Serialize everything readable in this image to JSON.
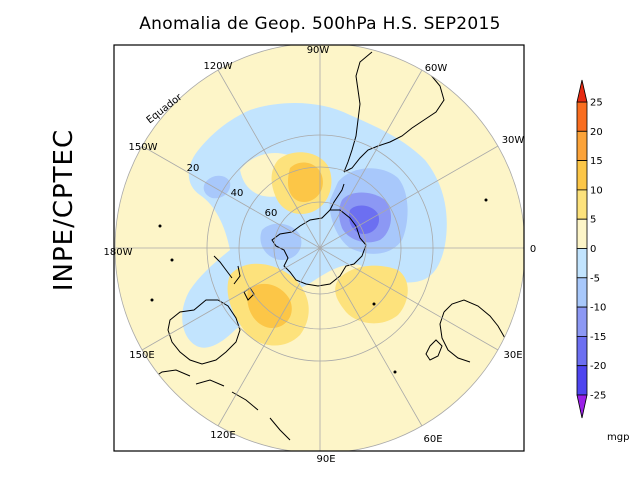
{
  "title": "Anomalia de Geop. 500hPa H.S. SEP2015",
  "side_label": "INPE/CPTEC",
  "map": {
    "projection": "polar stereographic, south pole",
    "longitude_labels": [
      "90W",
      "60W",
      "30W",
      "0",
      "30E",
      "60E",
      "90E",
      "120E",
      "150E",
      "180W",
      "150W",
      "120W"
    ],
    "latitude_labels": [
      "20",
      "40",
      "60"
    ],
    "equator_label": "Equador"
  },
  "colorbar": {
    "unit": "mgp",
    "ticks": [
      "25",
      "20",
      "15",
      "10",
      "5",
      "0",
      "-5",
      "-10",
      "-15",
      "-20",
      "-25"
    ],
    "colors": [
      "#f96d1f",
      "#fca339",
      "#fcc647",
      "#fde27c",
      "#fdf5c8",
      "#c2e4fe",
      "#a8c8fb",
      "#8c98f4",
      "#6c6ff1",
      "#4e45ef"
    ],
    "top_arrow": "#e62a12",
    "bottom_arrow": "#9a20e8"
  }
}
